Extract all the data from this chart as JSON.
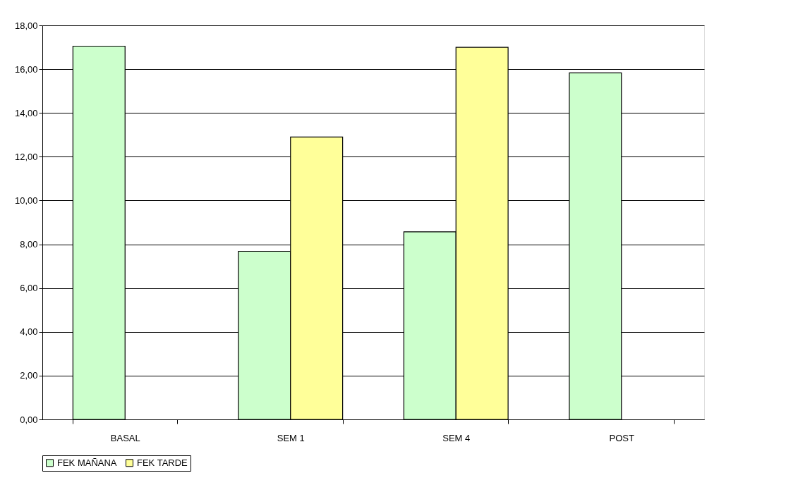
{
  "chart_data": {
    "type": "bar",
    "categories": [
      "BASAL",
      "SEM 1",
      "SEM 4",
      "POST"
    ],
    "series": [
      {
        "name": "FEK MAÑANA",
        "color": "#ccffcc",
        "values": [
          17.05,
          7.68,
          8.57,
          15.83
        ]
      },
      {
        "name": "FEK TARDE",
        "color": "#ffff99",
        "values": [
          null,
          12.9,
          17.0,
          null
        ]
      }
    ],
    "ylim": [
      0,
      18
    ],
    "yticks": [
      {
        "value": 0,
        "label": "0,00"
      },
      {
        "value": 2,
        "label": "2,00"
      },
      {
        "value": 4,
        "label": "4,00"
      },
      {
        "value": 6,
        "label": "6,00"
      },
      {
        "value": 8,
        "label": "8,00"
      },
      {
        "value": 10,
        "label": "10,00"
      },
      {
        "value": 12,
        "label": "12,00"
      },
      {
        "value": 14,
        "label": "14,00"
      },
      {
        "value": 16,
        "label": "16,00"
      },
      {
        "value": 18,
        "label": "18,00"
      }
    ],
    "grid": "y",
    "legend": "bottom"
  }
}
